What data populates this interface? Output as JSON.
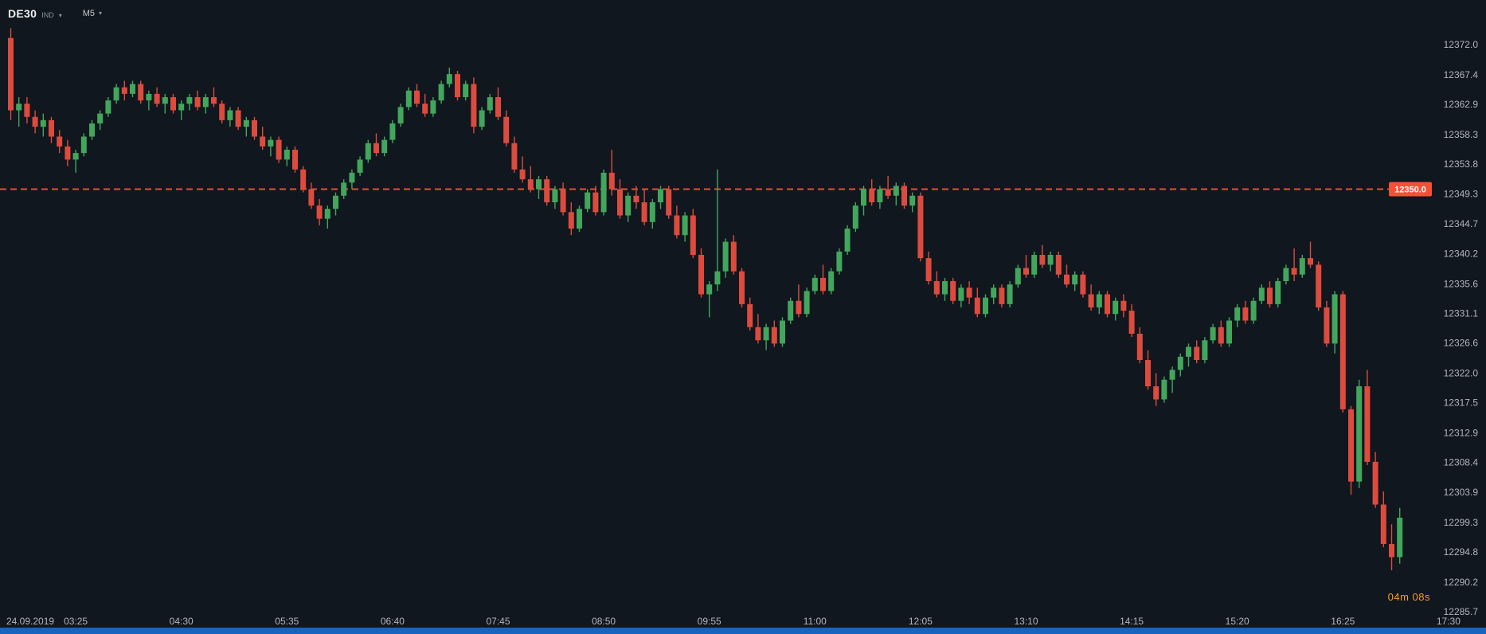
{
  "header": {
    "symbol": "DE30",
    "instrument_type": "IND",
    "timeframe": "M5",
    "dropdown_icon": "▾"
  },
  "chart_data": {
    "type": "candlestick",
    "symbol": "DE30",
    "timeframe": "M5",
    "date": "24.09.2019",
    "interval_minutes": 5,
    "start_time": "02:45",
    "x_labels": [
      "03:25",
      "04:30",
      "05:35",
      "06:40",
      "07:45",
      "08:50",
      "09:55",
      "11:00",
      "12:05",
      "13:10",
      "14:15",
      "15:20",
      "16:25",
      "17:30"
    ],
    "y_labels": [
      "12372.0",
      "12367.4",
      "12362.9",
      "12358.3",
      "12353.8",
      "12349.3",
      "12344.7",
      "12340.2",
      "12335.6",
      "12331.1",
      "12326.6",
      "12322.0",
      "12317.5",
      "12312.9",
      "12308.4",
      "12303.9",
      "12299.3",
      "12294.8",
      "12290.2",
      "12285.7"
    ],
    "ylim": [
      12285.7,
      12372.0
    ],
    "grid": "off",
    "legend": "none",
    "price_line": {
      "value": 12350.0,
      "label": "12350.0"
    },
    "countdown": "04m 08s",
    "colors": {
      "background": "#10171e",
      "bullish": "#42a65c",
      "bearish": "#dd4b3e",
      "price_line": "#f55036",
      "price_line_label_text": "#ffffff",
      "axis_text": "#b2b5be",
      "countdown": "#f7a01d",
      "bottom_bar": "#1565c0",
      "symbol_text": "#eceff1",
      "muted_text": "#8b949c"
    },
    "candles": [
      [
        12373.0,
        12374.5,
        12360.5,
        12362.0
      ],
      [
        12362.0,
        12364.0,
        12359.5,
        12363.0
      ],
      [
        12363.0,
        12364.0,
        12360.0,
        12361.0
      ],
      [
        12361.0,
        12362.0,
        12358.5,
        12359.5
      ],
      [
        12359.5,
        12361.5,
        12358.0,
        12360.5
      ],
      [
        12360.5,
        12361.0,
        12357.0,
        12358.0
      ],
      [
        12358.0,
        12359.0,
        12355.5,
        12356.5
      ],
      [
        12356.5,
        12357.5,
        12353.5,
        12354.5
      ],
      [
        12354.5,
        12356.0,
        12352.5,
        12355.5
      ],
      [
        12355.5,
        12358.5,
        12355.0,
        12358.0
      ],
      [
        12358.0,
        12360.5,
        12357.5,
        12360.0
      ],
      [
        12360.0,
        12362.0,
        12359.0,
        12361.5
      ],
      [
        12361.5,
        12364.0,
        12361.0,
        12363.5
      ],
      [
        12363.5,
        12366.0,
        12363.0,
        12365.5
      ],
      [
        12365.5,
        12366.5,
        12363.5,
        12364.5
      ],
      [
        12364.5,
        12366.5,
        12364.0,
        12366.0
      ],
      [
        12366.0,
        12366.5,
        12363.0,
        12363.5
      ],
      [
        12363.5,
        12365.0,
        12362.0,
        12364.5
      ],
      [
        12364.5,
        12365.5,
        12362.5,
        12363.0
      ],
      [
        12363.0,
        12364.5,
        12361.5,
        12364.0
      ],
      [
        12364.0,
        12364.5,
        12361.5,
        12362.0
      ],
      [
        12362.0,
        12363.5,
        12360.5,
        12363.0
      ],
      [
        12363.0,
        12364.5,
        12362.0,
        12364.0
      ],
      [
        12364.0,
        12365.0,
        12362.0,
        12362.5
      ],
      [
        12362.5,
        12364.5,
        12361.5,
        12364.0
      ],
      [
        12364.0,
        12365.5,
        12362.5,
        12363.0
      ],
      [
        12363.0,
        12363.5,
        12360.0,
        12360.5
      ],
      [
        12360.5,
        12362.5,
        12359.5,
        12362.0
      ],
      [
        12362.0,
        12362.5,
        12359.0,
        12359.5
      ],
      [
        12359.5,
        12361.0,
        12358.0,
        12360.5
      ],
      [
        12360.5,
        12361.0,
        12357.5,
        12358.0
      ],
      [
        12358.0,
        12359.5,
        12356.0,
        12356.5
      ],
      [
        12356.5,
        12358.0,
        12355.0,
        12357.5
      ],
      [
        12357.5,
        12358.0,
        12354.0,
        12354.5
      ],
      [
        12354.5,
        12356.5,
        12353.5,
        12356.0
      ],
      [
        12356.0,
        12356.5,
        12352.5,
        12353.0
      ],
      [
        12353.0,
        12353.5,
        12349.5,
        12350.0
      ],
      [
        12350.0,
        12351.0,
        12347.0,
        12347.5
      ],
      [
        12347.5,
        12348.5,
        12344.5,
        12345.5
      ],
      [
        12345.5,
        12347.5,
        12344.0,
        12347.0
      ],
      [
        12347.0,
        12349.5,
        12346.0,
        12349.0
      ],
      [
        12349.0,
        12351.5,
        12348.5,
        12351.0
      ],
      [
        12351.0,
        12353.0,
        12350.0,
        12352.5
      ],
      [
        12352.5,
        12355.0,
        12352.0,
        12354.5
      ],
      [
        12354.5,
        12357.5,
        12354.0,
        12357.0
      ],
      [
        12357.0,
        12358.5,
        12355.0,
        12355.5
      ],
      [
        12355.5,
        12358.0,
        12355.0,
        12357.5
      ],
      [
        12357.5,
        12360.5,
        12357.0,
        12360.0
      ],
      [
        12360.0,
        12363.0,
        12359.5,
        12362.5
      ],
      [
        12362.5,
        12365.5,
        12362.0,
        12365.0
      ],
      [
        12365.0,
        12366.0,
        12362.5,
        12363.0
      ],
      [
        12363.0,
        12364.5,
        12361.0,
        12361.5
      ],
      [
        12361.5,
        12364.0,
        12361.0,
        12363.5
      ],
      [
        12363.5,
        12366.5,
        12363.0,
        12366.0
      ],
      [
        12366.0,
        12368.5,
        12365.5,
        12367.5
      ],
      [
        12367.5,
        12368.0,
        12363.5,
        12364.0
      ],
      [
        12364.0,
        12366.5,
        12363.5,
        12366.0
      ],
      [
        12366.0,
        12367.0,
        12358.5,
        12359.5
      ],
      [
        12359.5,
        12362.5,
        12359.0,
        12362.0
      ],
      [
        12362.0,
        12364.5,
        12361.5,
        12364.0
      ],
      [
        12364.0,
        12365.5,
        12360.5,
        12361.0
      ],
      [
        12361.0,
        12362.0,
        12356.5,
        12357.0
      ],
      [
        12357.0,
        12358.0,
        12352.5,
        12353.0
      ],
      [
        12353.0,
        12355.0,
        12351.0,
        12351.5
      ],
      [
        12351.5,
        12353.5,
        12349.5,
        12350.0
      ],
      [
        12350.0,
        12352.0,
        12348.5,
        12351.5
      ],
      [
        12351.5,
        12352.0,
        12347.5,
        12348.0
      ],
      [
        12348.0,
        12350.5,
        12347.0,
        12350.0
      ],
      [
        12350.0,
        12351.0,
        12346.0,
        12346.5
      ],
      [
        12346.5,
        12348.0,
        12343.0,
        12344.0
      ],
      [
        12344.0,
        12347.5,
        12343.5,
        12347.0
      ],
      [
        12347.0,
        12350.0,
        12346.5,
        12349.5
      ],
      [
        12349.5,
        12350.5,
        12346.0,
        12346.5
      ],
      [
        12346.5,
        12353.0,
        12346.0,
        12352.5
      ],
      [
        12352.5,
        12356.0,
        12349.0,
        12350.0
      ],
      [
        12350.0,
        12351.5,
        12345.5,
        12346.0
      ],
      [
        12346.0,
        12349.5,
        12345.0,
        12349.0
      ],
      [
        12349.0,
        12350.5,
        12347.0,
        12348.0
      ],
      [
        12348.0,
        12350.0,
        12344.5,
        12345.0
      ],
      [
        12345.0,
        12348.5,
        12344.0,
        12348.0
      ],
      [
        12348.0,
        12350.5,
        12347.0,
        12350.0
      ],
      [
        12350.0,
        12350.5,
        12345.5,
        12346.0
      ],
      [
        12346.0,
        12347.5,
        12342.5,
        12343.0
      ],
      [
        12343.0,
        12346.5,
        12342.0,
        12346.0
      ],
      [
        12346.0,
        12347.0,
        12339.5,
        12340.0
      ],
      [
        12340.0,
        12341.0,
        12333.5,
        12334.0
      ],
      [
        12334.0,
        12336.0,
        12330.5,
        12335.5
      ],
      [
        12335.5,
        12353.0,
        12334.5,
        12337.5
      ],
      [
        12337.5,
        12342.5,
        12336.5,
        12342.0
      ],
      [
        12342.0,
        12343.0,
        12337.0,
        12337.5
      ],
      [
        12337.5,
        12338.0,
        12332.0,
        12332.5
      ],
      [
        12332.5,
        12333.5,
        12328.5,
        12329.0
      ],
      [
        12329.0,
        12331.0,
        12326.5,
        12327.0
      ],
      [
        12327.0,
        12329.5,
        12325.5,
        12329.0
      ],
      [
        12329.0,
        12330.0,
        12326.0,
        12326.5
      ],
      [
        12326.5,
        12330.5,
        12326.0,
        12330.0
      ],
      [
        12330.0,
        12333.5,
        12329.5,
        12333.0
      ],
      [
        12333.0,
        12335.5,
        12330.5,
        12331.0
      ],
      [
        12331.0,
        12335.0,
        12330.5,
        12334.5
      ],
      [
        12334.5,
        12337.0,
        12334.0,
        12336.5
      ],
      [
        12336.5,
        12338.5,
        12334.0,
        12334.5
      ],
      [
        12334.5,
        12338.0,
        12334.0,
        12337.5
      ],
      [
        12337.5,
        12341.0,
        12337.0,
        12340.5
      ],
      [
        12340.5,
        12344.5,
        12340.0,
        12344.0
      ],
      [
        12344.0,
        12348.0,
        12343.5,
        12347.5
      ],
      [
        12347.5,
        12350.5,
        12346.0,
        12350.0
      ],
      [
        12350.0,
        12351.5,
        12347.5,
        12348.0
      ],
      [
        12348.0,
        12350.5,
        12347.0,
        12350.0
      ],
      [
        12350.0,
        12352.0,
        12348.5,
        12349.0
      ],
      [
        12349.0,
        12351.0,
        12347.5,
        12350.5
      ],
      [
        12350.5,
        12351.0,
        12347.0,
        12347.5
      ],
      [
        12347.5,
        12349.5,
        12346.5,
        12349.0
      ],
      [
        12349.0,
        12349.5,
        12339.0,
        12339.5
      ],
      [
        12339.5,
        12340.5,
        12335.5,
        12336.0
      ],
      [
        12336.0,
        12337.5,
        12333.5,
        12334.0
      ],
      [
        12334.0,
        12336.5,
        12333.0,
        12336.0
      ],
      [
        12336.0,
        12336.5,
        12332.5,
        12333.0
      ],
      [
        12333.0,
        12335.5,
        12332.0,
        12335.0
      ],
      [
        12335.0,
        12336.0,
        12332.5,
        12333.5
      ],
      [
        12333.5,
        12335.0,
        12330.5,
        12331.0
      ],
      [
        12331.0,
        12334.0,
        12330.5,
        12333.5
      ],
      [
        12333.5,
        12335.5,
        12332.5,
        12335.0
      ],
      [
        12335.0,
        12335.5,
        12332.0,
        12332.5
      ],
      [
        12332.5,
        12336.0,
        12332.0,
        12335.5
      ],
      [
        12335.5,
        12338.5,
        12335.0,
        12338.0
      ],
      [
        12338.0,
        12340.0,
        12336.5,
        12337.0
      ],
      [
        12337.0,
        12340.5,
        12336.5,
        12340.0
      ],
      [
        12340.0,
        12341.5,
        12338.0,
        12338.5
      ],
      [
        12338.5,
        12340.5,
        12337.5,
        12340.0
      ],
      [
        12340.0,
        12340.5,
        12336.5,
        12337.0
      ],
      [
        12337.0,
        12338.5,
        12335.0,
        12335.5
      ],
      [
        12335.5,
        12337.5,
        12334.5,
        12337.0
      ],
      [
        12337.0,
        12337.5,
        12333.5,
        12334.0
      ],
      [
        12334.0,
        12335.5,
        12331.5,
        12332.0
      ],
      [
        12332.0,
        12334.5,
        12331.0,
        12334.0
      ],
      [
        12334.0,
        12334.5,
        12330.5,
        12331.0
      ],
      [
        12331.0,
        12333.5,
        12330.0,
        12333.0
      ],
      [
        12333.0,
        12334.0,
        12330.5,
        12331.5
      ],
      [
        12331.5,
        12332.5,
        12327.5,
        12328.0
      ],
      [
        12328.0,
        12329.0,
        12323.5,
        12324.0
      ],
      [
        12324.0,
        12325.5,
        12319.5,
        12320.0
      ],
      [
        12320.0,
        12322.0,
        12317.0,
        12318.0
      ],
      [
        12318.0,
        12321.5,
        12317.5,
        12321.0
      ],
      [
        12321.0,
        12323.0,
        12319.0,
        12322.5
      ],
      [
        12322.5,
        12325.0,
        12321.5,
        12324.5
      ],
      [
        12324.5,
        12326.5,
        12323.0,
        12326.0
      ],
      [
        12326.0,
        12327.0,
        12323.5,
        12324.0
      ],
      [
        12324.0,
        12327.5,
        12323.5,
        12327.0
      ],
      [
        12327.0,
        12329.5,
        12326.5,
        12329.0
      ],
      [
        12329.0,
        12330.0,
        12326.0,
        12326.5
      ],
      [
        12326.5,
        12330.5,
        12326.0,
        12330.0
      ],
      [
        12330.0,
        12332.5,
        12329.0,
        12332.0
      ],
      [
        12332.0,
        12333.0,
        12329.5,
        12330.0
      ],
      [
        12330.0,
        12333.5,
        12329.5,
        12333.0
      ],
      [
        12333.0,
        12335.5,
        12332.5,
        12335.0
      ],
      [
        12335.0,
        12336.0,
        12332.0,
        12332.5
      ],
      [
        12332.5,
        12336.5,
        12332.0,
        12336.0
      ],
      [
        12336.0,
        12338.5,
        12335.5,
        12338.0
      ],
      [
        12338.0,
        12341.0,
        12336.0,
        12337.0
      ],
      [
        12337.0,
        12340.0,
        12336.5,
        12339.5
      ],
      [
        12339.5,
        12342.0,
        12338.0,
        12338.5
      ],
      [
        12338.5,
        12339.0,
        12331.5,
        12332.0
      ],
      [
        12332.0,
        12333.0,
        12326.0,
        12326.5
      ],
      [
        12326.5,
        12334.5,
        12325.0,
        12334.0
      ],
      [
        12334.0,
        12334.5,
        12316.0,
        12316.5
      ],
      [
        12316.5,
        12317.0,
        12303.5,
        12305.5
      ],
      [
        12305.5,
        12321.0,
        12304.5,
        12320.0
      ],
      [
        12320.0,
        12322.5,
        12308.0,
        12308.5
      ],
      [
        12308.5,
        12310.0,
        12301.5,
        12302.0
      ],
      [
        12302.0,
        12304.0,
        12295.5,
        12296.0
      ],
      [
        12296.0,
        12299.0,
        12292.0,
        12294.0
      ],
      [
        12294.0,
        12301.5,
        12293.0,
        12300.0
      ]
    ]
  }
}
